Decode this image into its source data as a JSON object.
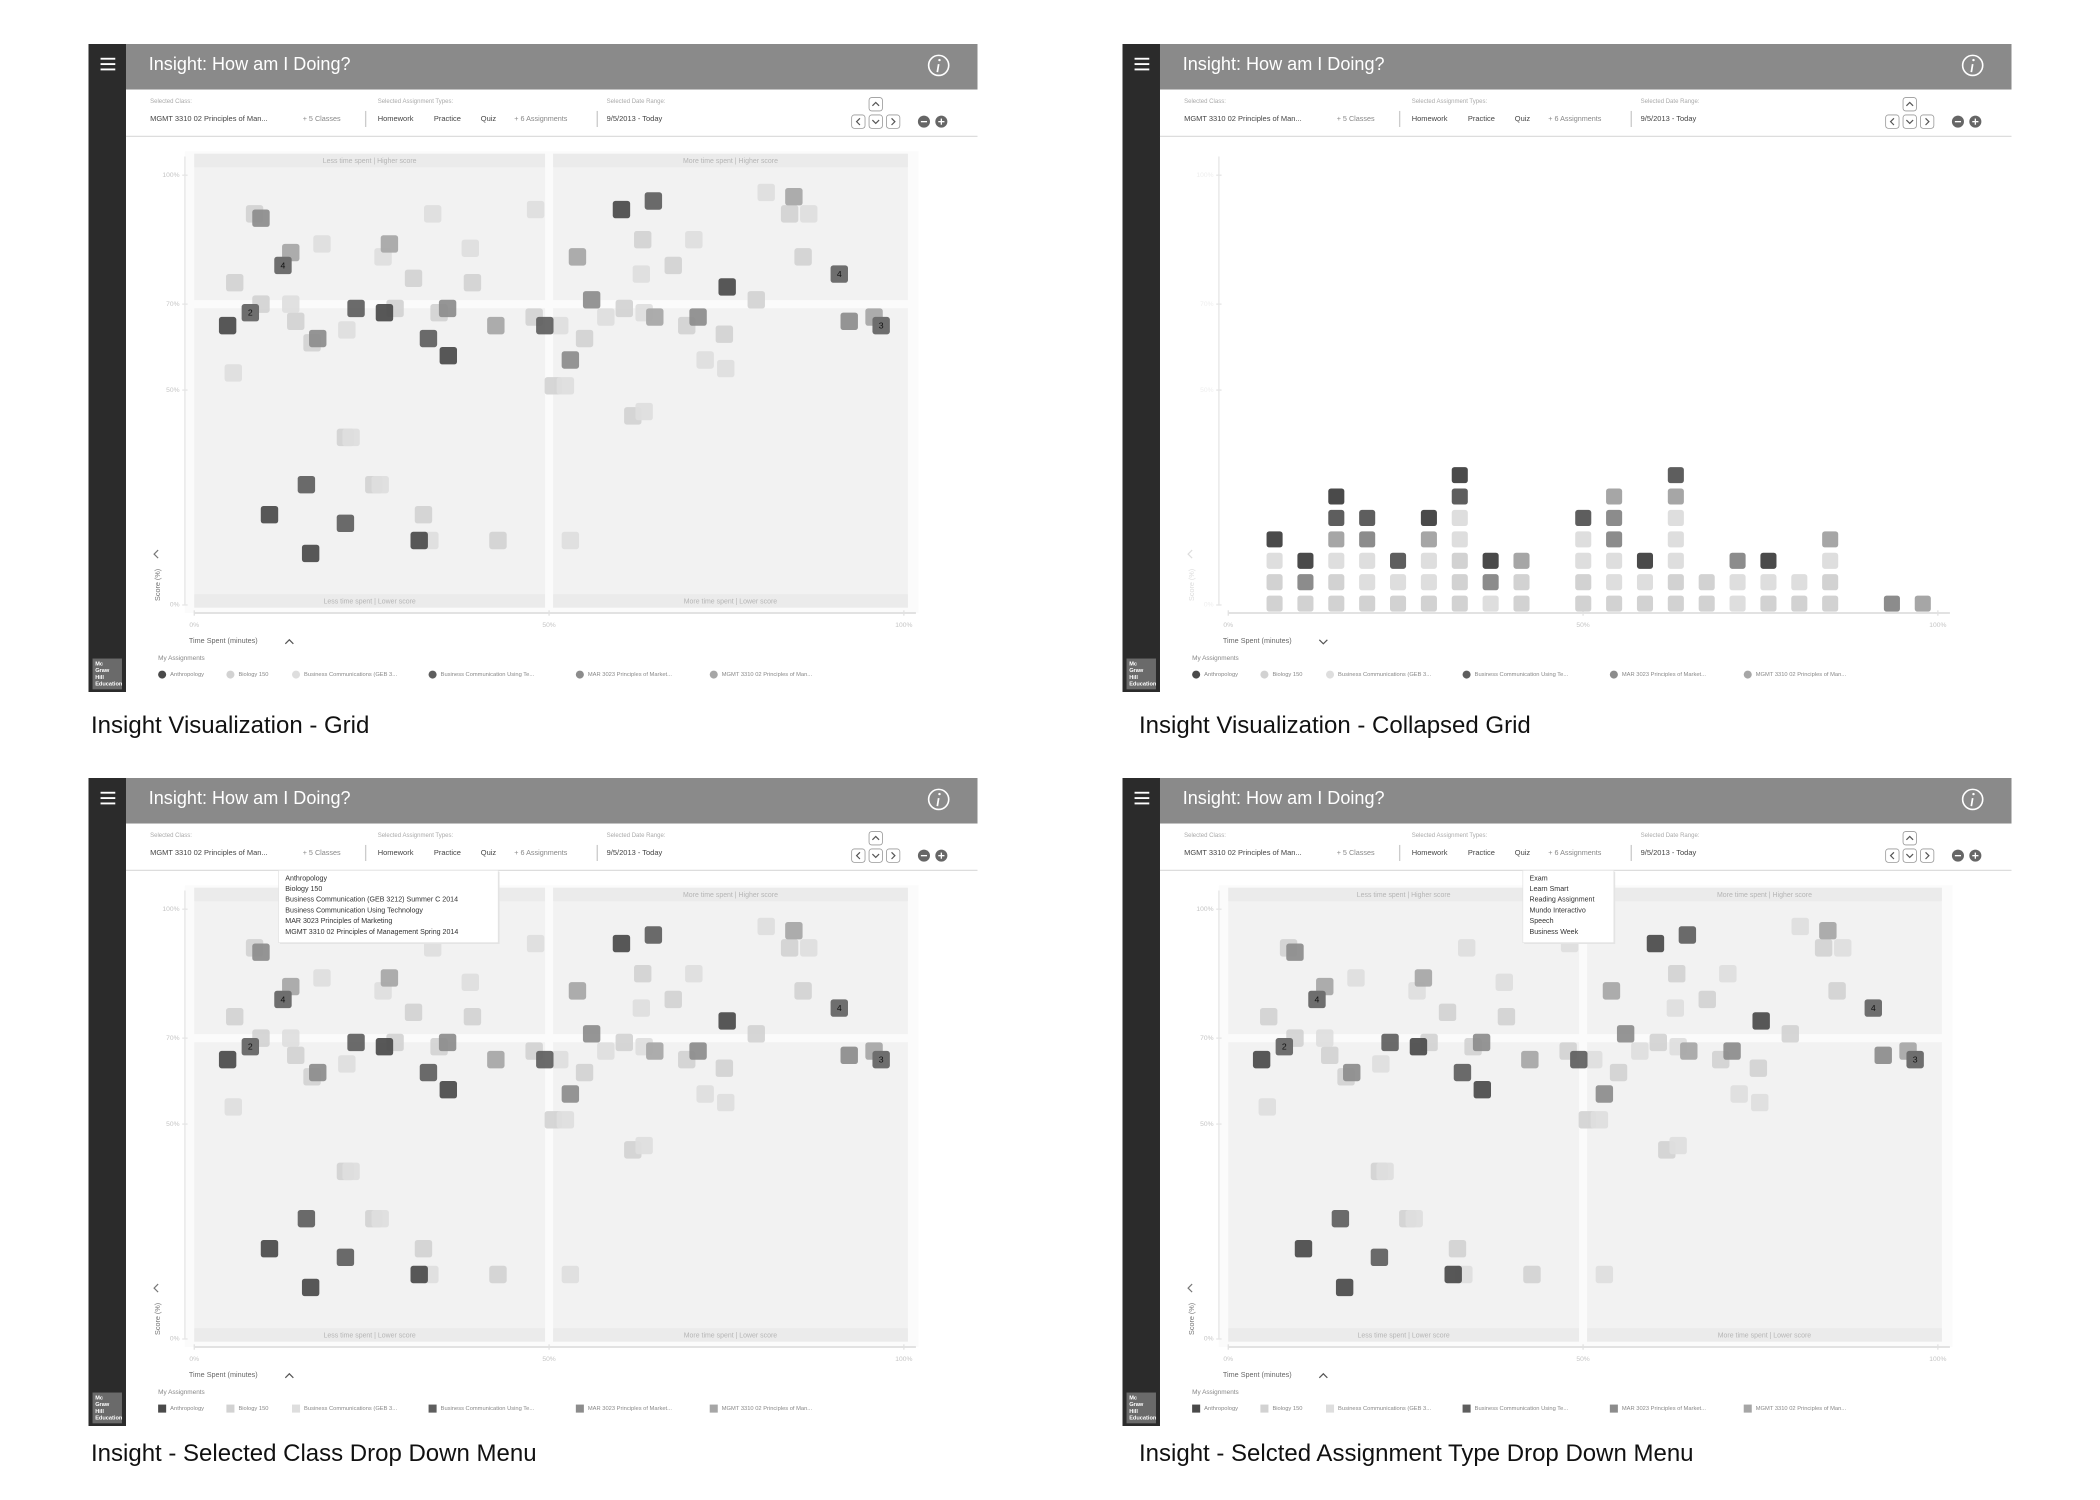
{
  "app": {
    "title": "Insight: How am I Doing?",
    "filters": {
      "class_label": "Selected Class:",
      "class_value": "MGMT 3310 02 Principles of Man...",
      "class_more": "+ 5 Classes",
      "type_label": "Selected Assignment Types:",
      "types": [
        "Homework",
        "Practice",
        "Quiz"
      ],
      "type_more": "+ 6 Assignments",
      "date_label": "Selected Date Range:",
      "date_value": "9/5/2013 - Today"
    },
    "logo": [
      "Mc",
      "Graw",
      "Hill",
      "Education"
    ]
  },
  "plot": {
    "y_label": "Score (%)",
    "x_label": "Time Spent (minutes)",
    "xlim": [
      0,
      100
    ],
    "xticks": [
      {
        "value": 0,
        "label": "0%"
      },
      {
        "value": 50,
        "label": "50%"
      },
      {
        "value": 100,
        "label": "100%"
      }
    ],
    "ylim": [
      0,
      100
    ],
    "yticks": [
      {
        "value": 0,
        "label": "0%"
      },
      {
        "value": 50,
        "label": "50%"
      },
      {
        "value": 70,
        "label": "70%"
      },
      {
        "value": 100,
        "label": "100%"
      }
    ],
    "quadrants": [
      "Less time spent | Higher score",
      "More time spent | Higher score",
      "Less time spent | Lower score",
      "More time spent | Lower score"
    ],
    "legend_title": "My Assignments",
    "classes": [
      {
        "name": "Anthropology",
        "color": "#4a4a4a",
        "points": [
          [
            4.7,
            65
          ],
          [
            26.8,
            68
          ],
          [
            35.8,
            58
          ],
          [
            60.2,
            92
          ],
          [
            75.1,
            74
          ],
          [
            10.6,
            21
          ],
          [
            16.4,
            12
          ],
          [
            31.7,
            15
          ]
        ]
      },
      {
        "name": "Biology 150",
        "color": "#d2d2d2",
        "points": [
          [
            8.5,
            91
          ],
          [
            5.7,
            75
          ],
          [
            9.4,
            70
          ],
          [
            14.3,
            66
          ],
          [
            16.6,
            61
          ],
          [
            28.3,
            69
          ],
          [
            30.9,
            76
          ],
          [
            34.5,
            68
          ],
          [
            39.2,
            75
          ],
          [
            47.9,
            67
          ],
          [
            50.6,
            51
          ],
          [
            55,
            62
          ],
          [
            63.2,
            85
          ],
          [
            60.6,
            69
          ],
          [
            67.5,
            79
          ],
          [
            69.4,
            65
          ],
          [
            74.7,
            63
          ],
          [
            79.2,
            71
          ],
          [
            83.9,
            91
          ],
          [
            85.8,
            81
          ],
          [
            61.8,
            44
          ],
          [
            21.3,
            39
          ],
          [
            25.3,
            28
          ],
          [
            32.3,
            21
          ],
          [
            42.8,
            15
          ]
        ]
      },
      {
        "name": "Business Communications (GEB 3...",
        "color": "#dedede",
        "points": [
          [
            18,
            84
          ],
          [
            13.6,
            70
          ],
          [
            5.5,
            54
          ],
          [
            21.5,
            64
          ],
          [
            26.6,
            81
          ],
          [
            33.6,
            91
          ],
          [
            38.9,
            83
          ],
          [
            48.1,
            92
          ],
          [
            51.5,
            65
          ],
          [
            52.3,
            51
          ],
          [
            58,
            67
          ],
          [
            63,
            77
          ],
          [
            63.4,
            68
          ],
          [
            70.4,
            85
          ],
          [
            72,
            57
          ],
          [
            74.9,
            55
          ],
          [
            80.6,
            96
          ],
          [
            86.6,
            91
          ],
          [
            63.4,
            45
          ],
          [
            22.1,
            39
          ],
          [
            26.2,
            28
          ],
          [
            33.2,
            15
          ],
          [
            53,
            15
          ]
        ]
      },
      {
        "name": "Business Communication Using Te...",
        "color": "#5e5e5e",
        "points": [
          [
            22.8,
            69
          ],
          [
            33,
            62
          ],
          [
            49.4,
            65
          ],
          [
            64.7,
            94
          ],
          [
            15.8,
            28
          ],
          [
            21.3,
            19
          ]
        ]
      },
      {
        "name": "MAR 3023 Principles of Market...",
        "color": "#8c8c8c",
        "points": [
          [
            9.4,
            90
          ],
          [
            17.4,
            62
          ],
          [
            35.7,
            69
          ],
          [
            53,
            57
          ],
          [
            56,
            71
          ],
          [
            71,
            67
          ],
          [
            92.3,
            66
          ]
        ]
      },
      {
        "name": "MGMT 3310 02 Principles of Man...",
        "color": "#a6a6a6",
        "points": [
          [
            13.6,
            82
          ],
          [
            27.5,
            84
          ],
          [
            42.5,
            65
          ],
          [
            54,
            81
          ],
          [
            64.9,
            67
          ],
          [
            84.5,
            95
          ],
          [
            95.8,
            67
          ]
        ]
      }
    ],
    "clusters": [
      {
        "time": 12.5,
        "score": 79,
        "count": 4
      },
      {
        "time": 7.9,
        "score": 68,
        "count": 2
      },
      {
        "time": 90.9,
        "score": 77,
        "count": 4
      },
      {
        "time": 96.8,
        "score": 65,
        "count": 3
      }
    ]
  },
  "menus": {
    "class_menu": [
      "Anthropology",
      "Biology 150",
      "Business Communication (GEB 3212) Summer C 2014",
      "Business Communication Using Technology",
      "MAR 3023 Principles of Marketing",
      "MGMT 3310 02 Principles of Management Spring 2014"
    ],
    "type_menu": [
      "Exam",
      "Learn Smart",
      "Reading Assignment",
      "Mundo Interactivo",
      "Speech",
      "Business Week"
    ]
  },
  "captions": [
    "Insight Visualization - Grid",
    "Insight Visualization - Collapsed Grid",
    "Insight - Selected Class Drop Down Menu",
    "Insight - Selcted Assignment Type Drop Down Menu"
  ]
}
